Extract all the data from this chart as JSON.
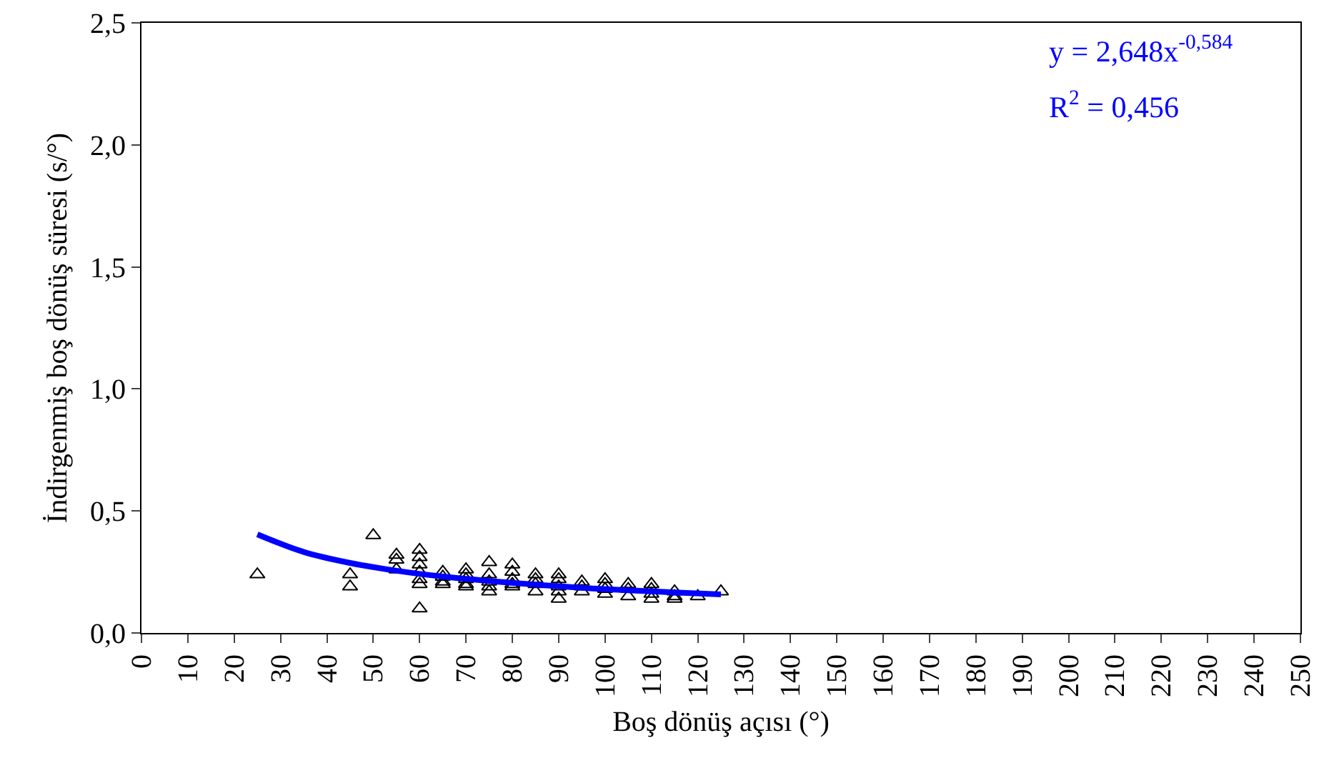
{
  "chart_data": {
    "type": "scatter",
    "xlabel": "Boş dönüş açısı (°)",
    "ylabel": "İndirgenmiş boş dönüş süresi (s/°)",
    "xlim": [
      0,
      250
    ],
    "xticks": [
      0,
      10,
      20,
      30,
      40,
      50,
      60,
      70,
      80,
      90,
      100,
      110,
      120,
      130,
      140,
      150,
      160,
      170,
      180,
      190,
      200,
      210,
      220,
      230,
      240,
      250
    ],
    "ylim": [
      0,
      2.5
    ],
    "yticks": [
      {
        "value": 0,
        "label": "0,0"
      },
      {
        "value": 0.5,
        "label": "0,5"
      },
      {
        "value": 1,
        "label": "1,0"
      },
      {
        "value": 1.5,
        "label": "1,5"
      },
      {
        "value": 2,
        "label": "2,0"
      },
      {
        "value": 2.5,
        "label": "2,5"
      }
    ],
    "grid": false,
    "marker": "triangle",
    "series": [
      {
        "color": "#000000",
        "x": [
          25,
          45,
          45,
          50,
          55,
          55,
          55,
          60,
          60,
          60,
          60,
          60,
          60,
          60,
          65,
          65,
          65,
          65,
          70,
          70,
          70,
          70,
          70,
          75,
          75,
          75,
          75,
          75,
          80,
          80,
          80,
          80,
          80,
          85,
          85,
          85,
          85,
          90,
          90,
          90,
          90,
          90,
          95,
          95,
          95,
          100,
          100,
          100,
          100,
          105,
          105,
          105,
          110,
          110,
          110,
          110,
          115,
          115,
          115,
          120,
          125
        ],
        "values": [
          0.24,
          0.24,
          0.19,
          0.4,
          0.32,
          0.3,
          0.26,
          0.34,
          0.31,
          0.28,
          0.25,
          0.22,
          0.2,
          0.1,
          0.25,
          0.23,
          0.21,
          0.2,
          0.26,
          0.24,
          0.22,
          0.2,
          0.19,
          0.29,
          0.24,
          0.21,
          0.19,
          0.17,
          0.28,
          0.25,
          0.22,
          0.2,
          0.19,
          0.24,
          0.22,
          0.2,
          0.17,
          0.24,
          0.22,
          0.19,
          0.17,
          0.14,
          0.21,
          0.19,
          0.17,
          0.22,
          0.2,
          0.18,
          0.16,
          0.2,
          0.18,
          0.15,
          0.2,
          0.18,
          0.16,
          0.14,
          0.17,
          0.15,
          0.14,
          0.15,
          0.17
        ]
      },
      {
        "type": "line",
        "marker": "none",
        "color": "#0000ff",
        "x": [
          25,
          35,
          45,
          55,
          65,
          75,
          85,
          95,
          105,
          115,
          125
        ],
        "values": [
          0.404,
          0.332,
          0.287,
          0.255,
          0.231,
          0.213,
          0.198,
          0.185,
          0.175,
          0.166,
          0.158
        ]
      }
    ],
    "annotations": [
      "y = 2,648x$^{-0,584}$",
      "R$^{2}$ = 0,456"
    ]
  }
}
